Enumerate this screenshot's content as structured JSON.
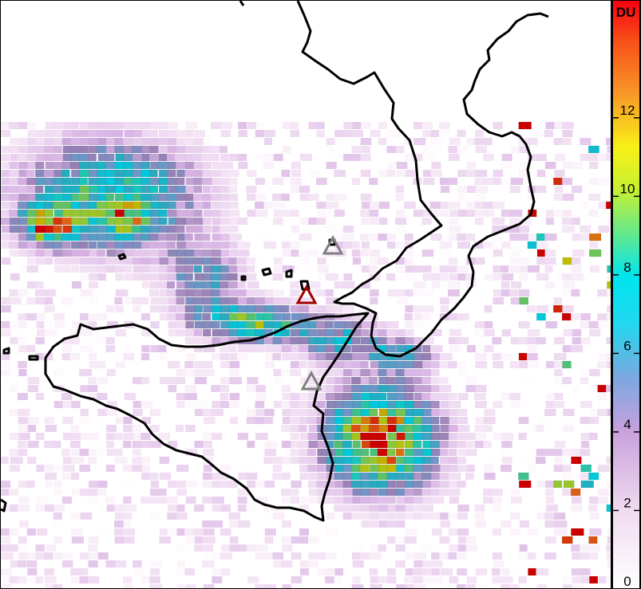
{
  "map": {
    "colorbar": {
      "unit": "DU",
      "min": 0,
      "max": 15,
      "ticks": [
        0,
        2,
        4,
        6,
        8,
        10,
        12
      ],
      "tick_labels": [
        "0",
        "2",
        "4",
        "6",
        "8",
        "10",
        "12"
      ]
    },
    "markers": [
      {
        "name": "volcano-marker-stromboli",
        "color": "#808080"
      },
      {
        "name": "volcano-marker-vulcano",
        "color": "#a00000"
      },
      {
        "name": "volcano-marker-etna",
        "color": "#808080"
      }
    ]
  }
}
